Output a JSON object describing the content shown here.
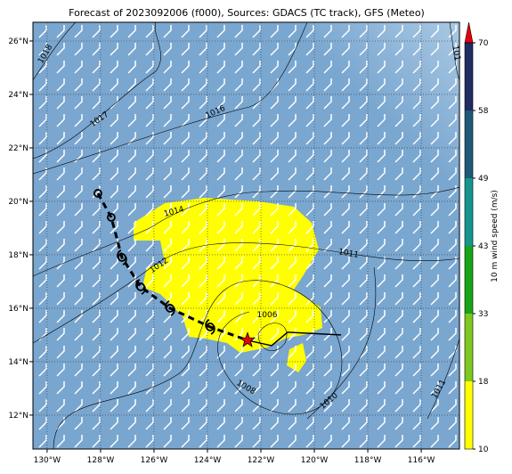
{
  "title": "Forecast of 2023092006 (f000), Sources: GDACS (TC track), GFS (Meteo)",
  "map": {
    "xlim": [
      -130.53,
      -114.57
    ],
    "ylim": [
      10.73,
      26.7
    ],
    "grid": true,
    "xticks": [
      {
        "value": -130,
        "label": "130°W"
      },
      {
        "value": -128,
        "label": "128°W"
      },
      {
        "value": -126,
        "label": "126°W"
      },
      {
        "value": -124,
        "label": "124°W"
      },
      {
        "value": -122,
        "label": "122°W"
      },
      {
        "value": -120,
        "label": "120°W"
      },
      {
        "value": -118,
        "label": "118°W"
      },
      {
        "value": -116,
        "label": "116°W"
      }
    ],
    "yticks": [
      {
        "value": 12,
        "label": "12°N"
      },
      {
        "value": 14,
        "label": "14°N"
      },
      {
        "value": 16,
        "label": "16°N"
      },
      {
        "value": 18,
        "label": "18°N"
      },
      {
        "value": 20,
        "label": "20°N"
      },
      {
        "value": 22,
        "label": "22°N"
      },
      {
        "value": 24,
        "label": "24°N"
      },
      {
        "value": 26,
        "label": "26°N"
      }
    ]
  },
  "colorbar": {
    "label": "10 m wind speed (m/s)",
    "ticks": [
      10,
      18,
      33,
      43,
      49,
      58,
      70
    ],
    "colors": [
      "#ffff00",
      "#7dc91f",
      "#16a516",
      "#14968f",
      "#1c5a7c",
      "#1f2d63"
    ],
    "extend_color": "#e8000b"
  },
  "track": {
    "color": "#000000",
    "current_color": "#e8000b",
    "lon": [
      -128.1,
      -127.6,
      -127.2,
      -126.5,
      -125.4,
      -123.9,
      -122.5
    ],
    "lat": [
      20.3,
      19.4,
      17.9,
      16.8,
      16.0,
      15.3,
      14.8
    ]
  },
  "forecast": {
    "color": "#000000",
    "lon": [
      -122.5,
      -121.6,
      -121.0,
      -119.0
    ],
    "lat": [
      14.8,
      14.6,
      15.1,
      15.0
    ]
  },
  "isobar_labels": [
    "1018",
    "1017",
    "1016",
    "1014",
    "1012",
    "1011",
    "1006",
    "1008",
    "1010",
    "1011",
    "101"
  ]
}
